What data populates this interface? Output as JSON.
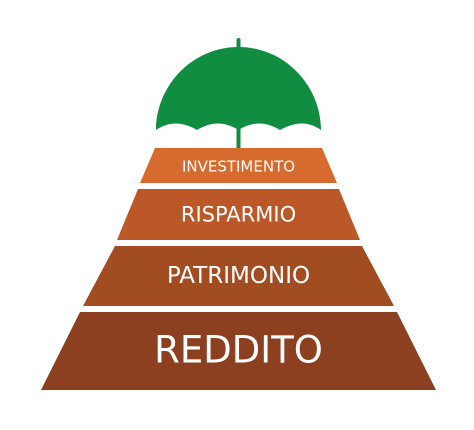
{
  "diagram": {
    "tiers": [
      {
        "id": "investimento",
        "label": "INVESTIMENTO",
        "color": "#D76A2D"
      },
      {
        "id": "risparmio",
        "label": "RISPARMIO",
        "color": "#BC5828"
      },
      {
        "id": "patrimonio",
        "label": "PATRIMONIO",
        "color": "#A24C22"
      },
      {
        "id": "reddito",
        "label": "REDDITO",
        "color": "#8D4020"
      }
    ],
    "umbrella": {
      "icon": "umbrella-icon",
      "canopy_color": "#108D40",
      "shaft_color": "#108D40"
    }
  }
}
